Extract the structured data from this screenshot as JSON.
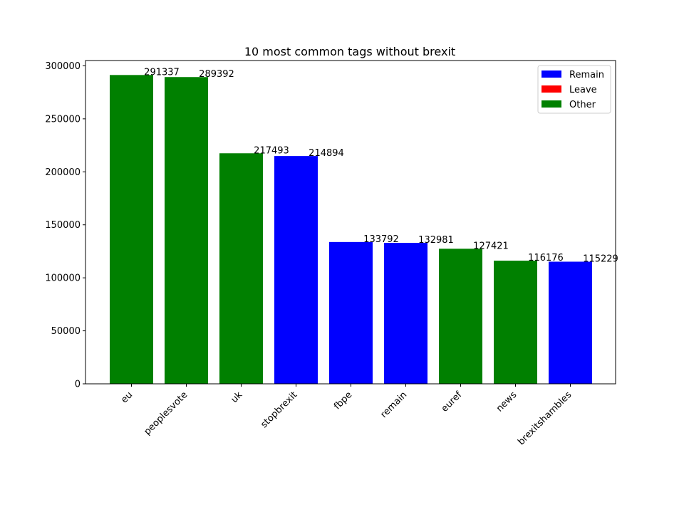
{
  "chart_data": {
    "type": "bar",
    "title": "10 most common tags without brexit",
    "xlabel": "",
    "ylabel": "",
    "categories": [
      "eu",
      "peoplesvote",
      "uk",
      "stopbrexit",
      "fbpe",
      "remain",
      "euref",
      "news",
      "brexitshambles"
    ],
    "values": [
      291337,
      289392,
      217493,
      214894,
      133792,
      132981,
      127421,
      116176,
      115229
    ],
    "bar_groups": [
      "Other",
      "Other",
      "Other",
      "Remain",
      "Remain",
      "Remain",
      "Other",
      "Other",
      "Remain"
    ],
    "data_labels": [
      "291337",
      "289392",
      "217493",
      "214894",
      "133792",
      "132981",
      "127421",
      "116176",
      "115229"
    ],
    "ylim": [
      0,
      305000
    ],
    "yticks": [
      0,
      50000,
      100000,
      150000,
      200000,
      250000,
      300000
    ],
    "ytick_labels": [
      "0",
      "50000",
      "100000",
      "150000",
      "200000",
      "250000",
      "300000"
    ],
    "grid": false,
    "legend": {
      "placement": "top-right",
      "entries": [
        {
          "name": "Remain",
          "color": "#0000ff"
        },
        {
          "name": "Leave",
          "color": "#ff0000"
        },
        {
          "name": "Other",
          "color": "#008000"
        }
      ]
    },
    "colors": {
      "Remain": "#0000ff",
      "Leave": "#ff0000",
      "Other": "#008000"
    }
  }
}
